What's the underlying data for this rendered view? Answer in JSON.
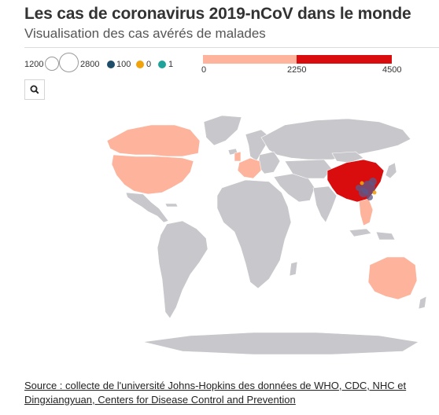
{
  "header": {
    "title": "Les cas de coronavirus 2019-nCoV dans le monde",
    "subtitle": "Visualisation des cas avérés de malades"
  },
  "legend": {
    "size": {
      "min_label": "1200",
      "max_label": "2800"
    },
    "dots": [
      {
        "label": "100",
        "color": "#1f4e6b"
      },
      {
        "label": "0",
        "color": "#f0a30a"
      },
      {
        "label": "1",
        "color": "#1fa39a"
      }
    ],
    "scale": {
      "labels": [
        "0",
        "2250",
        "4500"
      ],
      "low_color": "#fdb39c",
      "high_color": "#d90d0d"
    }
  },
  "search": {
    "icon": "search-icon"
  },
  "map": {
    "colors": {
      "no_data": "#c8c8cc",
      "low": "#fdb39c",
      "high": "#d90d0d",
      "bubble": "#5a5a8c",
      "bubble_accent": "#f0a30a"
    },
    "highlighted_regions": [
      {
        "region": "China",
        "level": "high"
      },
      {
        "region": "United States",
        "level": "low"
      },
      {
        "region": "Canada",
        "level": "low"
      },
      {
        "region": "Australia",
        "level": "low"
      },
      {
        "region": "Europe",
        "level": "low"
      },
      {
        "region": "Southeast Asia",
        "level": "low"
      }
    ]
  },
  "source": {
    "prefix": "Source : collecte de l'université Johns-Hopkins des données de WHO, CDC, NHC et Dingxiangyuan, ",
    "link_text": "Centers for Disease Control and Prevention"
  }
}
